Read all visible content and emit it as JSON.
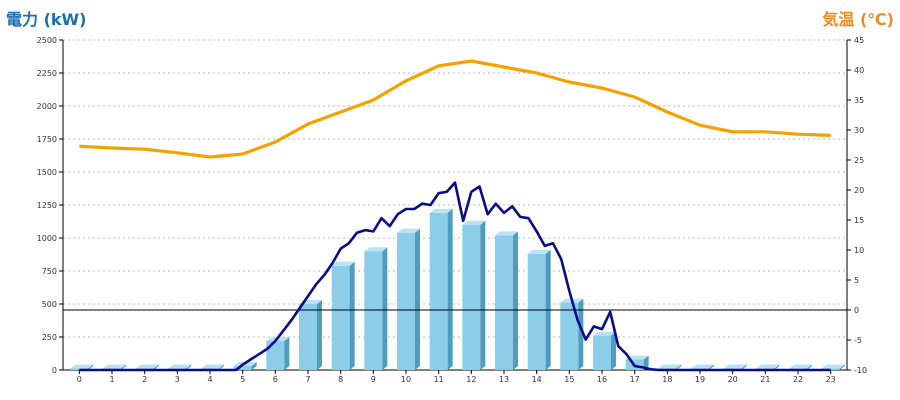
{
  "left_title": "電力 (kW)",
  "right_title": "気温 (℃)",
  "colors": {
    "left_title": "#1a6fb0",
    "right_title": "#f08c1e",
    "bar_front": "#8ccde9",
    "bar_side": "#4f9cc1",
    "bar_top": "#b9e3f4",
    "power_line": "#0a0a8c",
    "temp_line": "#f5a200",
    "grid": "#b8b8b8",
    "axis": "#000000"
  },
  "chart_data": {
    "type": "bar",
    "categories": [
      "0",
      "1",
      "2",
      "3",
      "4",
      "5",
      "6",
      "7",
      "8",
      "9",
      "10",
      "11",
      "12",
      "13",
      "14",
      "15",
      "16",
      "17",
      "18",
      "19",
      "20",
      "21",
      "22",
      "23"
    ],
    "y_left": {
      "min": 0,
      "max": 2500,
      "ticks": [
        0,
        250,
        500,
        750,
        1000,
        1250,
        1500,
        1750,
        2000,
        2250,
        2500
      ]
    },
    "y_right": {
      "min": -10,
      "max": 45,
      "ticks": [
        -10,
        -5,
        0,
        5,
        10,
        15,
        20,
        25,
        30,
        35,
        40,
        45
      ]
    },
    "grid": true,
    "bars": [
      0,
      0,
      0,
      0,
      0,
      30,
      220,
      500,
      790,
      900,
      1040,
      1190,
      1100,
      1020,
      880,
      510,
      260,
      80,
      0,
      0,
      0,
      0,
      0,
      0
    ],
    "temperature": {
      "x": [
        0,
        1,
        2,
        3,
        4,
        5,
        6,
        7,
        8,
        9,
        10,
        11,
        12,
        13,
        14,
        15,
        16,
        17,
        18,
        19,
        20,
        21,
        22,
        23
      ],
      "values": [
        27.3,
        27,
        26.8,
        26.2,
        25.5,
        26,
        28,
        31,
        33,
        35,
        38.2,
        40.7,
        41.5,
        40.5,
        39.5,
        38,
        37,
        35.5,
        33,
        30.8,
        29.7,
        29.7,
        29.3,
        29.1
      ]
    },
    "power_line": {
      "x": [
        0,
        1,
        2,
        3,
        4,
        4.8,
        5,
        5.25,
        5.5,
        5.75,
        6,
        6.25,
        6.5,
        6.75,
        7,
        7.25,
        7.5,
        7.75,
        8,
        8.25,
        8.5,
        8.75,
        9,
        9.25,
        9.5,
        9.75,
        10,
        10.25,
        10.5,
        10.75,
        11,
        11.25,
        11.5,
        11.75,
        12,
        12.25,
        12.5,
        12.75,
        13,
        13.25,
        13.5,
        13.75,
        14,
        14.25,
        14.5,
        14.75,
        15,
        15.25,
        15.5,
        15.75,
        16,
        16.25,
        16.5,
        16.75,
        17,
        17.25,
        17.5,
        17.75,
        18,
        19,
        20,
        21,
        22,
        23
      ],
      "values": [
        0,
        0,
        0,
        0,
        0,
        0,
        40,
        80,
        120,
        160,
        220,
        300,
        380,
        470,
        560,
        650,
        720,
        810,
        920,
        960,
        1040,
        1060,
        1050,
        1150,
        1090,
        1180,
        1220,
        1220,
        1260,
        1250,
        1340,
        1350,
        1420,
        1130,
        1350,
        1390,
        1180,
        1260,
        1190,
        1240,
        1160,
        1150,
        1050,
        940,
        960,
        840,
        600,
        380,
        230,
        330,
        310,
        440,
        180,
        120,
        30,
        20,
        5,
        0,
        0,
        0,
        0,
        0,
        0,
        0
      ]
    },
    "reference_line": {
      "axis": "y_right",
      "value": 0
    }
  }
}
